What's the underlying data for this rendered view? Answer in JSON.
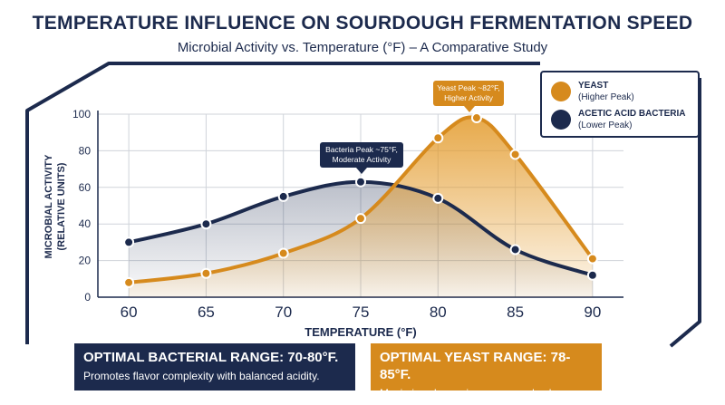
{
  "title": "TEMPERATURE INFLUENCE ON SOURDOUGH FERMENTATION SPEED",
  "subtitle": "Microbial Activity vs. Temperature (°F) – A Comparative Study",
  "colors": {
    "navy": "#1c2a4d",
    "orange": "#d68a1d"
  },
  "legend": {
    "yeast": {
      "name": "YEAST",
      "sub": "(Higher Peak)"
    },
    "bacteria": {
      "name": "ACETIC ACID BACTERIA",
      "sub": "(Lower Peak)"
    }
  },
  "annotations": {
    "yeast_peak": {
      "line1": "Yeast Peak ~82°F,",
      "line2": "Higher Activity"
    },
    "bacteria_peak": {
      "line1": "Bacteria Peak ~75°F,",
      "line2": "Moderate Activity"
    }
  },
  "banners": {
    "bacterial": {
      "heading": "OPTIMAL BACTERIAL RANGE: 70-80°F.",
      "text": "Promotes flavor complexity with balanced acidity."
    },
    "yeast": {
      "heading": "OPTIMAL YEAST RANGE: 78-85°F.",
      "text": "Maximizes leavening power and volume."
    }
  },
  "chart_data": {
    "type": "line",
    "x": [
      60,
      65,
      70,
      75,
      80,
      82.5,
      85,
      90
    ],
    "xticks": [
      60,
      65,
      70,
      75,
      80,
      85,
      90
    ],
    "yticks": [
      0,
      20,
      40,
      60,
      80,
      100
    ],
    "xlim": [
      58,
      92
    ],
    "ylim": [
      0,
      100
    ],
    "xlabel": "TEMPERATURE (°F)",
    "ylabel_line1": "MICROBIAL ACTIVITY",
    "ylabel_line2": "(RELATIVE UNITS)",
    "grid": true,
    "legend_position": "top-right",
    "series": [
      {
        "name": "YEAST",
        "color": "#d68a1d",
        "x": [
          60,
          65,
          70,
          75,
          80,
          82.5,
          85,
          90
        ],
        "values": [
          8,
          13,
          24,
          43,
          87,
          98,
          78,
          21
        ]
      },
      {
        "name": "ACETIC ACID BACTERIA",
        "color": "#1c2a4d",
        "x": [
          60,
          65,
          70,
          75,
          80,
          85,
          90
        ],
        "values": [
          30,
          40,
          55,
          63,
          54,
          26,
          12
        ]
      }
    ]
  }
}
